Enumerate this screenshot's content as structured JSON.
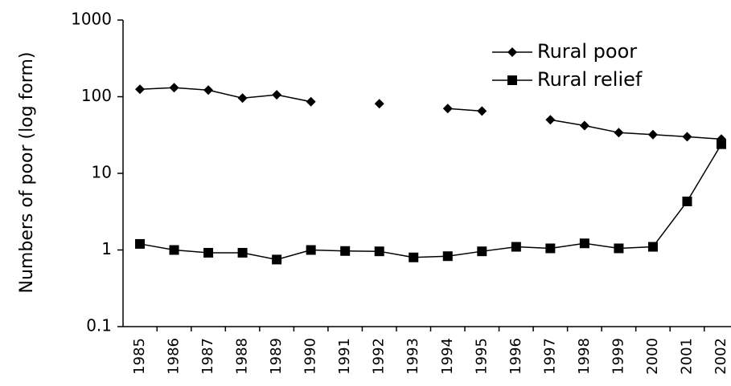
{
  "chart_data": {
    "type": "line",
    "y_label": "Numbers of poor (log form)",
    "categories": [
      "1985",
      "1986",
      "1987",
      "1988",
      "1989",
      "1990",
      "1991",
      "1992",
      "1993",
      "1994",
      "1995",
      "1996",
      "1997",
      "1998",
      "1999",
      "2000",
      "2001",
      "2002"
    ],
    "series": [
      {
        "name": "Rural poor",
        "color": "#000000",
        "marker": "diamond",
        "values": [
          125,
          131,
          122,
          96,
          106,
          86,
          null,
          81,
          null,
          70,
          65,
          null,
          50,
          42,
          34,
          32,
          30,
          28
        ]
      },
      {
        "name": "Rural relief",
        "color": "#000000",
        "marker": "square",
        "values": [
          1.2,
          1.0,
          0.92,
          0.92,
          0.75,
          1.0,
          0.97,
          0.96,
          0.8,
          0.83,
          0.96,
          1.1,
          1.05,
          1.22,
          1.05,
          1.1,
          4.3,
          24
        ]
      }
    ],
    "ylim": [
      0.1,
      1000
    ],
    "yticks": [
      0.1,
      1,
      10,
      100,
      1000
    ],
    "log_scale": true,
    "grid": false,
    "legend": "upper right"
  }
}
